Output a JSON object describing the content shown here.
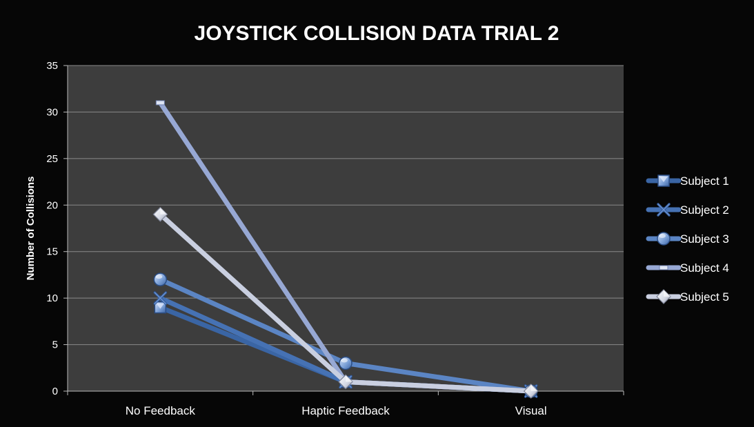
{
  "chart_data": {
    "type": "line",
    "title": "JOYSTICK COLLISION DATA TRIAL 2",
    "xlabel": "",
    "ylabel": "Number of Collisions",
    "categories": [
      "No Feedback",
      "Haptic Feedback",
      "Visual"
    ],
    "ylim": [
      0,
      35
    ],
    "yticks": [
      0,
      5,
      10,
      15,
      20,
      25,
      30,
      35
    ],
    "grid": true,
    "legend_position": "right",
    "series": [
      {
        "name": "Subject 1",
        "values": [
          9,
          1,
          0
        ],
        "color": "#3a65a4",
        "marker": "square-icon"
      },
      {
        "name": "Subject 2",
        "values": [
          10,
          1,
          0
        ],
        "color": "#4672b4",
        "marker": "x-icon"
      },
      {
        "name": "Subject 3",
        "values": [
          12,
          3,
          0
        ],
        "color": "#5b85c4",
        "marker": "circle-icon"
      },
      {
        "name": "Subject 4",
        "values": [
          31,
          1,
          0
        ],
        "color": "#97a8d4",
        "marker": "dash-icon"
      },
      {
        "name": "Subject 5",
        "values": [
          19,
          1,
          0
        ],
        "color": "#c9cfe0",
        "marker": "diamond-icon"
      }
    ]
  },
  "colors": {
    "background": "#060606",
    "plot_area": "#3d3d3d",
    "gridline": "#8a8a8a",
    "text": "#ffffff"
  }
}
